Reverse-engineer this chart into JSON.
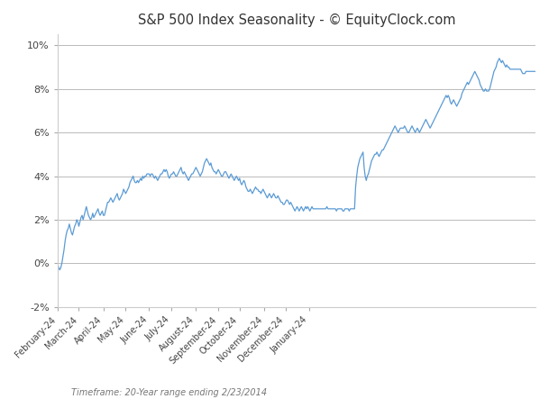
{
  "title": "S&P 500 Index Seasonality - © EquityClock.com",
  "footnote": "Timeframe: 20-Year range ending 2/23/2014",
  "line_color": "#5b9bd5",
  "background_color": "#ffffff",
  "plot_bg_color": "#ffffff",
  "grid_color": "#b0b0b0",
  "ylim": [
    -0.02,
    0.105
  ],
  "yticks": [
    -0.02,
    0.0,
    0.02,
    0.04,
    0.06,
    0.08,
    0.1
  ],
  "xlabel_months": [
    "February-24",
    "March-24",
    "April-24",
    "May-24",
    "June-24",
    "July-24",
    "August-24",
    "September-24",
    "October-24",
    "November-24",
    "December-24",
    "January-24"
  ],
  "seasonality_values": [
    0.0,
    -0.002,
    -0.003,
    -0.002,
    0.0,
    0.003,
    0.006,
    0.01,
    0.013,
    0.015,
    0.016,
    0.018,
    0.016,
    0.014,
    0.013,
    0.015,
    0.017,
    0.018,
    0.02,
    0.019,
    0.017,
    0.019,
    0.021,
    0.022,
    0.02,
    0.022,
    0.024,
    0.026,
    0.024,
    0.022,
    0.021,
    0.02,
    0.021,
    0.023,
    0.021,
    0.022,
    0.023,
    0.024,
    0.025,
    0.023,
    0.022,
    0.023,
    0.024,
    0.022,
    0.022,
    0.024,
    0.026,
    0.028,
    0.028,
    0.029,
    0.03,
    0.029,
    0.028,
    0.029,
    0.03,
    0.031,
    0.032,
    0.03,
    0.029,
    0.03,
    0.031,
    0.032,
    0.034,
    0.033,
    0.032,
    0.033,
    0.034,
    0.035,
    0.037,
    0.038,
    0.039,
    0.04,
    0.038,
    0.037,
    0.037,
    0.038,
    0.037,
    0.038,
    0.039,
    0.038,
    0.04,
    0.039,
    0.04,
    0.04,
    0.041,
    0.041,
    0.041,
    0.04,
    0.041,
    0.041,
    0.04,
    0.039,
    0.04,
    0.039,
    0.038,
    0.039,
    0.04,
    0.041,
    0.041,
    0.042,
    0.043,
    0.042,
    0.043,
    0.042,
    0.04,
    0.039,
    0.04,
    0.041,
    0.041,
    0.042,
    0.041,
    0.04,
    0.04,
    0.041,
    0.042,
    0.043,
    0.044,
    0.042,
    0.041,
    0.042,
    0.041,
    0.04,
    0.039,
    0.038,
    0.039,
    0.04,
    0.041,
    0.041,
    0.042,
    0.043,
    0.044,
    0.043,
    0.042,
    0.041,
    0.04,
    0.041,
    0.042,
    0.044,
    0.046,
    0.047,
    0.048,
    0.047,
    0.046,
    0.045,
    0.046,
    0.044,
    0.043,
    0.042,
    0.042,
    0.041,
    0.042,
    0.043,
    0.042,
    0.041,
    0.04,
    0.04,
    0.041,
    0.042,
    0.042,
    0.041,
    0.04,
    0.039,
    0.04,
    0.041,
    0.04,
    0.039,
    0.038,
    0.039,
    0.04,
    0.039,
    0.038,
    0.039,
    0.037,
    0.036,
    0.037,
    0.038,
    0.037,
    0.035,
    0.034,
    0.033,
    0.033,
    0.034,
    0.033,
    0.032,
    0.033,
    0.034,
    0.035,
    0.034,
    0.034,
    0.033,
    0.033,
    0.032,
    0.033,
    0.034,
    0.033,
    0.032,
    0.031,
    0.03,
    0.031,
    0.032,
    0.031,
    0.03,
    0.031,
    0.032,
    0.031,
    0.03,
    0.03,
    0.031,
    0.03,
    0.029,
    0.028,
    0.028,
    0.027,
    0.027,
    0.028,
    0.029,
    0.029,
    0.028,
    0.027,
    0.028,
    0.027,
    0.026,
    0.025,
    0.024,
    0.025,
    0.026,
    0.025,
    0.024,
    0.025,
    0.026,
    0.025,
    0.024,
    0.025,
    0.026,
    0.025,
    0.026,
    0.025,
    0.024,
    0.025,
    0.026,
    0.025,
    0.025,
    0.025,
    0.025,
    0.025,
    0.025,
    0.025,
    0.025,
    0.025,
    0.025,
    0.025,
    0.025,
    0.025,
    0.026,
    0.025,
    0.025,
    0.025,
    0.025,
    0.025,
    0.025,
    0.025,
    0.025,
    0.024,
    0.025,
    0.025,
    0.025,
    0.025,
    0.025,
    0.024,
    0.024,
    0.025,
    0.025,
    0.025,
    0.025,
    0.024,
    0.025,
    0.025,
    0.025,
    0.025,
    0.025,
    0.035,
    0.04,
    0.044,
    0.046,
    0.048,
    0.049,
    0.05,
    0.051,
    0.044,
    0.04,
    0.038,
    0.04,
    0.041,
    0.043,
    0.045,
    0.047,
    0.048,
    0.049,
    0.05,
    0.05,
    0.051,
    0.05,
    0.049,
    0.05,
    0.051,
    0.052,
    0.052,
    0.053,
    0.054,
    0.055,
    0.056,
    0.057,
    0.058,
    0.059,
    0.06,
    0.061,
    0.062,
    0.063,
    0.062,
    0.061,
    0.06,
    0.061,
    0.062,
    0.062,
    0.062,
    0.062,
    0.063,
    0.062,
    0.061,
    0.06,
    0.06,
    0.061,
    0.062,
    0.063,
    0.062,
    0.061,
    0.06,
    0.061,
    0.062,
    0.061,
    0.06,
    0.061,
    0.062,
    0.063,
    0.064,
    0.065,
    0.066,
    0.065,
    0.064,
    0.063,
    0.062,
    0.063,
    0.064,
    0.065,
    0.066,
    0.067,
    0.068,
    0.069,
    0.07,
    0.071,
    0.072,
    0.073,
    0.074,
    0.075,
    0.076,
    0.077,
    0.076,
    0.077,
    0.076,
    0.074,
    0.073,
    0.074,
    0.075,
    0.074,
    0.073,
    0.072,
    0.073,
    0.074,
    0.075,
    0.076,
    0.078,
    0.079,
    0.08,
    0.081,
    0.082,
    0.083,
    0.082,
    0.083,
    0.084,
    0.085,
    0.086,
    0.087,
    0.088,
    0.087,
    0.086,
    0.085,
    0.084,
    0.082,
    0.081,
    0.08,
    0.079,
    0.079,
    0.08,
    0.079,
    0.079,
    0.079,
    0.08,
    0.082,
    0.084,
    0.086,
    0.088,
    0.089,
    0.09,
    0.092,
    0.093,
    0.094,
    0.093,
    0.092,
    0.093,
    0.092,
    0.091,
    0.09,
    0.091,
    0.09,
    0.09,
    0.089,
    0.089,
    0.089,
    0.089,
    0.089,
    0.089,
    0.089,
    0.089,
    0.089,
    0.089,
    0.089,
    0.088,
    0.087,
    0.087,
    0.087,
    0.088,
    0.088,
    0.088,
    0.088,
    0.088,
    0.088,
    0.088,
    0.088,
    0.088,
    0.088
  ]
}
